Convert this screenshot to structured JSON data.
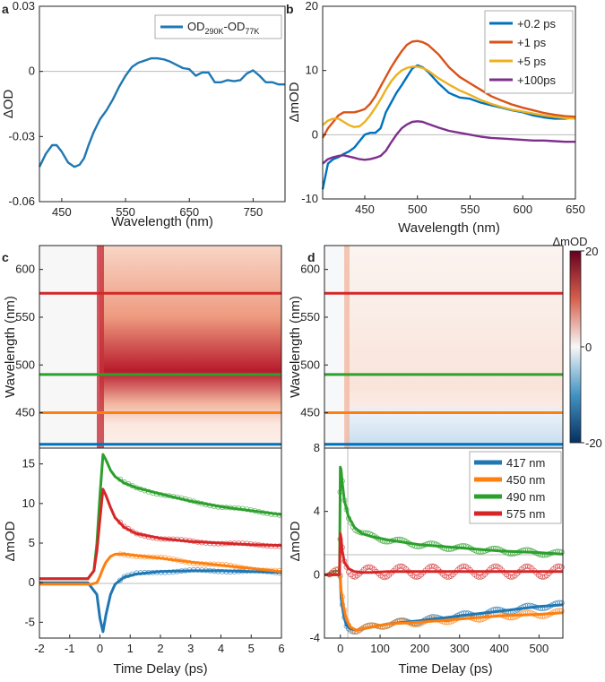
{
  "chart_data": [
    {
      "panel": "a",
      "type": "line",
      "xlabel": "Wavelength (nm)",
      "ylabel": "ΔOD",
      "xlim": [
        415,
        800
      ],
      "ylim": [
        -0.06,
        0.03
      ],
      "xticks": [
        450,
        550,
        650,
        750
      ],
      "yticks": [
        -0.06,
        -0.03,
        0,
        0.03
      ],
      "ytick_labels": [
        "-0.06",
        "-0.03",
        "0",
        "0.03"
      ],
      "legend": {
        "position": "top-right",
        "main": "OD",
        "sub1": "290K",
        "mid": "-OD",
        "sub2": "77K"
      },
      "series": [
        {
          "name": "OD290K-OD77K",
          "color": "#1f77b4",
          "x": [
            415,
            425,
            435,
            442,
            450,
            460,
            470,
            478,
            485,
            492,
            500,
            510,
            520,
            530,
            540,
            550,
            560,
            570,
            580,
            590,
            600,
            610,
            620,
            630,
            640,
            650,
            660,
            670,
            680,
            690,
            700,
            710,
            720,
            730,
            740,
            750,
            760,
            770,
            780,
            790,
            800
          ],
          "y": [
            -0.044,
            -0.038,
            -0.034,
            -0.034,
            -0.037,
            -0.042,
            -0.044,
            -0.043,
            -0.04,
            -0.034,
            -0.028,
            -0.022,
            -0.018,
            -0.013,
            -0.007,
            -0.002,
            0.002,
            0.004,
            0.005,
            0.006,
            0.006,
            0.0055,
            0.0045,
            0.003,
            0.0015,
            0.001,
            -0.002,
            -0.0005,
            -0.0005,
            -0.005,
            -0.005,
            -0.004,
            -0.0045,
            -0.004,
            -0.001,
            0.0005,
            -0.002,
            -0.005,
            -0.005,
            -0.006,
            -0.006
          ]
        }
      ]
    },
    {
      "panel": "b",
      "type": "line",
      "xlabel": "Wavelength (nm)",
      "ylabel": "ΔmOD",
      "xlim": [
        410,
        650
      ],
      "ylim": [
        -10,
        20
      ],
      "xticks": [
        450,
        500,
        550,
        600,
        650
      ],
      "yticks": [
        -10,
        0,
        10,
        20
      ],
      "legend_position": "top-right",
      "series": [
        {
          "name": "+0.2 ps",
          "color": "#0072bd",
          "x": [
            410,
            415,
            420,
            425,
            430,
            435,
            440,
            445,
            450,
            455,
            460,
            465,
            470,
            475,
            480,
            485,
            490,
            495,
            500,
            505,
            510,
            520,
            530,
            540,
            550,
            560,
            570,
            580,
            590,
            600,
            610,
            620,
            630,
            640,
            650
          ],
          "y": [
            -8.5,
            -4.5,
            -3.8,
            -3.5,
            -3,
            -2.6,
            -2,
            -1,
            0,
            0.3,
            0.3,
            1,
            3.5,
            5,
            6.5,
            7.7,
            9,
            10.3,
            10.8,
            10.5,
            9.8,
            8,
            6.5,
            5.8,
            5.6,
            5,
            4.6,
            4.2,
            3.8,
            3.5,
            3,
            2.7,
            2.5,
            2.5,
            2.7
          ]
        },
        {
          "name": "+1 ps",
          "color": "#d95319",
          "x": [
            410,
            415,
            420,
            425,
            430,
            435,
            440,
            445,
            450,
            455,
            460,
            465,
            470,
            475,
            480,
            485,
            490,
            495,
            500,
            505,
            510,
            520,
            530,
            540,
            550,
            560,
            570,
            580,
            590,
            600,
            610,
            620,
            630,
            640,
            650
          ],
          "y": [
            -0.5,
            1,
            2,
            3,
            3.5,
            3.5,
            3.5,
            3.7,
            4,
            4.8,
            6,
            7.5,
            9,
            10.5,
            11.8,
            13,
            14,
            14.5,
            14.6,
            14.4,
            14,
            12.5,
            10.5,
            9,
            8,
            7,
            6,
            5.3,
            4.7,
            4.2,
            3.8,
            3.4,
            3.1,
            2.9,
            2.8
          ]
        },
        {
          "name": "+5 ps",
          "color": "#edb120",
          "x": [
            410,
            415,
            420,
            425,
            430,
            435,
            440,
            445,
            450,
            455,
            460,
            465,
            470,
            475,
            480,
            485,
            490,
            495,
            500,
            505,
            510,
            520,
            530,
            540,
            550,
            560,
            570,
            580,
            590,
            600,
            610,
            620,
            630,
            640,
            650
          ],
          "y": [
            1.5,
            2.2,
            2.5,
            2.5,
            2,
            1.5,
            1.2,
            1.3,
            2,
            3,
            4.2,
            5.5,
            7,
            8.3,
            9.3,
            10,
            10.4,
            10.6,
            10.6,
            10.4,
            10,
            8.8,
            7.8,
            6.9,
            6.2,
            5.4,
            4.8,
            4.3,
            3.9,
            3.6,
            3.3,
            3,
            2.8,
            2.6,
            2.5
          ]
        },
        {
          "name": "+100ps",
          "color": "#7e2f8e",
          "x": [
            410,
            415,
            420,
            425,
            430,
            435,
            440,
            445,
            450,
            455,
            460,
            465,
            470,
            475,
            480,
            485,
            490,
            495,
            500,
            505,
            510,
            520,
            530,
            540,
            550,
            560,
            570,
            580,
            590,
            600,
            610,
            620,
            630,
            640,
            650
          ],
          "y": [
            -4.5,
            -3.8,
            -3.5,
            -3.3,
            -3.2,
            -3.4,
            -3.6,
            -3.8,
            -3.9,
            -3.8,
            -3.6,
            -3.3,
            -2.5,
            -1.2,
            0,
            1,
            1.6,
            2,
            2.1,
            2,
            1.7,
            1.1,
            0.6,
            0.3,
            0,
            -0.3,
            -0.5,
            -0.6,
            -0.7,
            -0.8,
            -0.9,
            -0.9,
            -1,
            -1.1,
            -1.1
          ]
        }
      ]
    },
    {
      "panel": "c",
      "type": "heatmap",
      "xlim": [
        -2,
        6
      ],
      "ylim": [
        413,
        625
      ],
      "ylabel": "Wavelength (nm)",
      "yticks": [
        450,
        500,
        550,
        600
      ],
      "cuts": [
        {
          "wavelength": 417,
          "color": "#0072bd"
        },
        {
          "wavelength": 450,
          "color": "#ff7f0e"
        },
        {
          "wavelength": 490,
          "color": "#2ca02c"
        },
        {
          "wavelength": 575,
          "color": "#d62728"
        }
      ]
    },
    {
      "panel": "d",
      "type": "heatmap",
      "xlim": [
        -40,
        560
      ],
      "ylim": [
        413,
        625
      ],
      "ylabel": "Wavelength (nm)",
      "yticks": [
        450,
        500,
        550,
        600
      ],
      "colorbar": {
        "label": "ΔmOD",
        "min": -20,
        "max": 20,
        "ticks": [
          20,
          0,
          -20
        ],
        "tick_labels": [
          "20",
          "0",
          "-20"
        ]
      },
      "cuts": [
        {
          "wavelength": 417,
          "color": "#0072bd"
        },
        {
          "wavelength": 450,
          "color": "#ff7f0e"
        },
        {
          "wavelength": 490,
          "color": "#2ca02c"
        },
        {
          "wavelength": 575,
          "color": "#d62728"
        }
      ]
    },
    {
      "panel": "c-kinetics",
      "type": "line",
      "xlabel": "Time Delay (ps)",
      "ylabel": "ΔmOD",
      "xlim": [
        -2,
        6
      ],
      "ylim": [
        -7,
        17
      ],
      "xticks": [
        -2,
        -1,
        0,
        1,
        2,
        3,
        4,
        5,
        6
      ],
      "yticks": [
        -5,
        0,
        5,
        10,
        15
      ],
      "series": [
        {
          "name": "417 nm",
          "color": "#1f77b4",
          "x": [
            -2,
            -0.4,
            -0.1,
            0,
            0.1,
            0.2,
            0.35,
            0.5,
            0.8,
            1.2,
            2,
            3,
            4,
            5,
            6
          ],
          "y": [
            0,
            0,
            -1.5,
            -4.5,
            -6.2,
            -4,
            -1.5,
            -0.2,
            0.7,
            1.1,
            1.4,
            1.5,
            1.5,
            1.4,
            1.3
          ]
        },
        {
          "name": "450 nm",
          "color": "#ff7f0e",
          "x": [
            -2,
            -0.3,
            -0.1,
            0,
            0.1,
            0.2,
            0.35,
            0.5,
            0.8,
            1.5,
            2,
            3,
            4,
            5,
            6
          ],
          "y": [
            -0.2,
            -0.2,
            0,
            0.8,
            1.8,
            2.6,
            3.3,
            3.6,
            3.6,
            3.3,
            3.1,
            2.6,
            2.2,
            1.8,
            1.4
          ]
        },
        {
          "name": "490 nm",
          "color": "#2ca02c",
          "x": [
            -2,
            -0.4,
            -0.2,
            -0.1,
            0,
            0.1,
            0.2,
            0.35,
            0.5,
            0.8,
            1.2,
            2,
            3,
            4,
            5,
            6
          ],
          "y": [
            0.5,
            0.5,
            1.5,
            5,
            11,
            16.2,
            15.5,
            14.2,
            13.4,
            12.6,
            12,
            11.2,
            10.3,
            9.6,
            9.1,
            8.6
          ]
        },
        {
          "name": "575 nm",
          "color": "#d62728",
          "x": [
            -2,
            -0.4,
            -0.2,
            -0.1,
            0,
            0.1,
            0.2,
            0.35,
            0.5,
            0.8,
            1.2,
            2,
            3,
            4,
            5,
            6
          ],
          "y": [
            0.5,
            0.5,
            1.5,
            4,
            8,
            11.8,
            11,
            9.5,
            8.2,
            7,
            6.2,
            5.6,
            5.2,
            5,
            4.8,
            4.7
          ]
        }
      ]
    },
    {
      "panel": "d-kinetics",
      "type": "line",
      "xlabel": "Time Delay (ps)",
      "ylabel": "ΔmOD",
      "xlim": [
        -40,
        560
      ],
      "ylim": [
        -4,
        8
      ],
      "xticks": [
        0,
        100,
        200,
        300,
        400,
        500
      ],
      "yticks": [
        -4,
        0,
        4,
        8
      ],
      "legend_position": "top-right",
      "series": [
        {
          "name": "417 nm",
          "color": "#1f77b4",
          "x": [
            -40,
            -2,
            0,
            2,
            8,
            15,
            25,
            40,
            60,
            80,
            120,
            200,
            300,
            400,
            500,
            560
          ],
          "y": [
            0,
            0,
            -0.3,
            -1.5,
            -2.5,
            -3.2,
            -3.4,
            -3.5,
            -3.4,
            -3.3,
            -3.1,
            -2.9,
            -2.6,
            -2.3,
            -2,
            -1.9
          ]
        },
        {
          "name": "450 nm",
          "color": "#ff7f0e",
          "x": [
            -40,
            -2,
            0,
            2,
            8,
            15,
            25,
            40,
            60,
            80,
            120,
            200,
            300,
            400,
            500,
            560
          ],
          "y": [
            0,
            0,
            -0.2,
            -1,
            -2,
            -2.8,
            -3.3,
            -3.5,
            -3.4,
            -3.3,
            -3.1,
            -3,
            -2.8,
            -2.6,
            -2.5,
            -2.4
          ]
        },
        {
          "name": "490 nm",
          "color": "#2ca02c",
          "x": [
            -40,
            -2,
            0,
            2,
            5,
            10,
            20,
            35,
            55,
            80,
            120,
            200,
            300,
            400,
            500,
            560
          ],
          "y": [
            0,
            0,
            6.8,
            6.6,
            5.8,
            4.7,
            3.7,
            3,
            2.6,
            2.4,
            2.2,
            1.9,
            1.7,
            1.5,
            1.4,
            1.3
          ]
        },
        {
          "name": "575 nm",
          "color": "#d62728",
          "x": [
            -40,
            -2,
            0,
            2,
            5,
            10,
            20,
            35,
            55,
            80,
            120,
            200,
            300,
            400,
            500,
            560
          ],
          "y": [
            0,
            0,
            2.6,
            2.3,
            1.5,
            0.8,
            0.4,
            0.2,
            0.15,
            0.15,
            0.2,
            0.2,
            0.2,
            0.2,
            0.2,
            0.2
          ]
        }
      ]
    }
  ],
  "panel_labels": {
    "a": "a",
    "b": "b",
    "c": "c",
    "d": "d"
  }
}
